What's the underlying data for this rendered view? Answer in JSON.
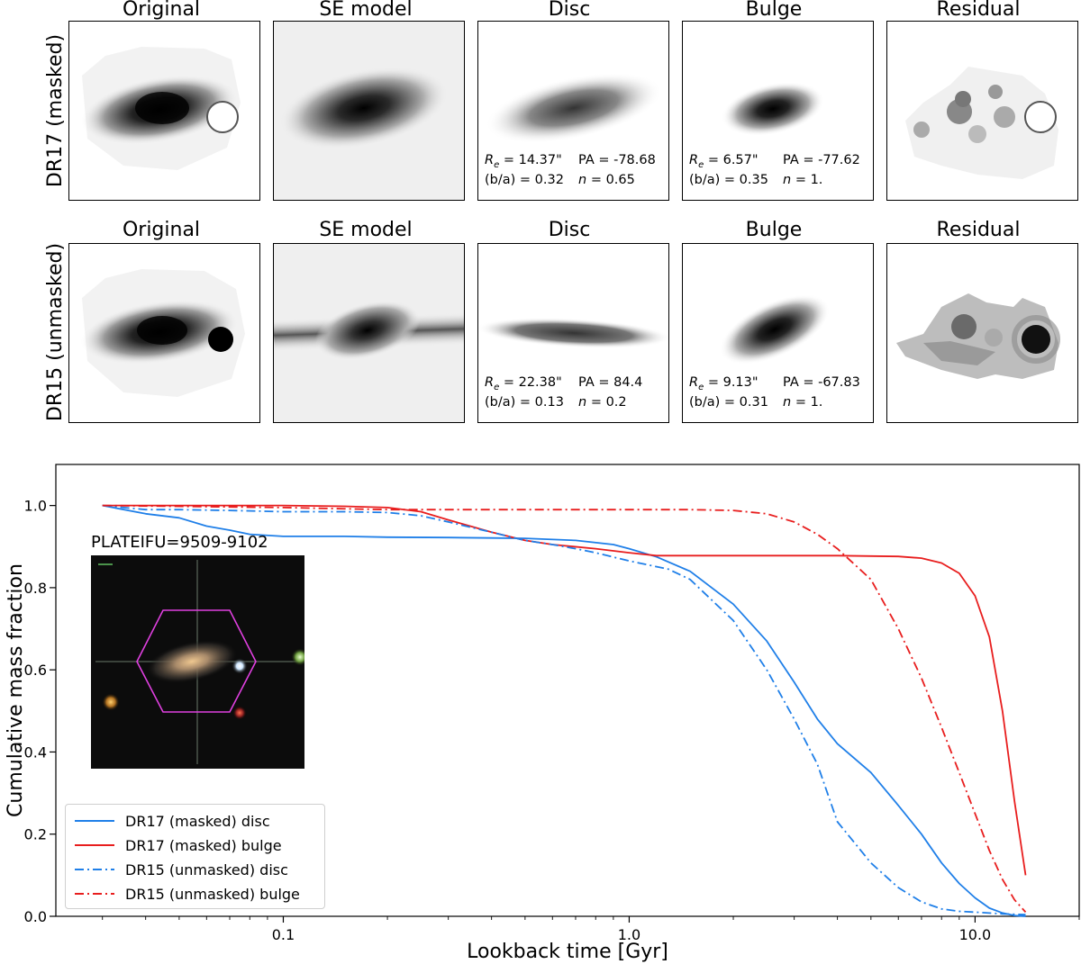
{
  "row_labels": [
    "DR17 (masked)",
    "DR15 (unmasked)"
  ],
  "panel_titles": [
    "Original",
    "SE model",
    "Disc",
    "Bulge",
    "Residual"
  ],
  "fits": {
    "dr17_disc": {
      "re": "= 14.37\"",
      "pa": "PA = -78.68",
      "ba": "(b/a) = 0.32",
      "n": "= 0.65"
    },
    "dr17_bulge": {
      "re": "= 6.57\"",
      "pa": "PA = -77.62",
      "ba": "(b/a) = 0.35",
      "n": "= 1."
    },
    "dr15_disc": {
      "re": "= 22.38\"",
      "pa": "PA = 84.4",
      "ba": "(b/a) = 0.13",
      "n": "= 0.2"
    },
    "dr15_bulge": {
      "re": "= 9.13\"",
      "pa": "PA = -67.83",
      "ba": "(b/a) = 0.31",
      "n": "= 1."
    }
  },
  "inset": {
    "title": "PLATEIFU=9509-9102",
    "hexagon_color": "#e040e0"
  },
  "chart_data": {
    "type": "line",
    "xlabel": "Lookback time [Gyr]",
    "ylabel": "Cumulative mass fraction",
    "xscale": "log",
    "xlim": [
      0.022,
      20
    ],
    "ylim": [
      0.0,
      1.1
    ],
    "x_ticks": [
      0.1,
      1.0,
      10.0
    ],
    "x_tick_labels": [
      "0.1",
      "1.0",
      "10.0"
    ],
    "y_ticks": [
      0.0,
      0.2,
      0.4,
      0.6,
      0.8,
      1.0
    ],
    "y_tick_labels": [
      "0.0",
      "0.2",
      "0.4",
      "0.6",
      "0.8",
      "1.0"
    ],
    "legend_position": "lower-left",
    "series": [
      {
        "name": "DR17 (masked) disc",
        "color": "#1f7fe8",
        "dash": "solid",
        "x": [
          0.03,
          0.04,
          0.05,
          0.06,
          0.07,
          0.08,
          0.1,
          0.15,
          0.2,
          0.3,
          0.4,
          0.5,
          0.7,
          0.9,
          1.0,
          1.2,
          1.5,
          2.0,
          2.5,
          3.0,
          3.5,
          4.0,
          5.0,
          6.0,
          7.0,
          8.0,
          9.0,
          10.0,
          11.0,
          12.0,
          13.0,
          14.0
        ],
        "y": [
          1.0,
          0.98,
          0.97,
          0.95,
          0.94,
          0.93,
          0.925,
          0.925,
          0.923,
          0.922,
          0.921,
          0.92,
          0.915,
          0.905,
          0.895,
          0.875,
          0.84,
          0.76,
          0.67,
          0.57,
          0.48,
          0.42,
          0.35,
          0.27,
          0.2,
          0.13,
          0.08,
          0.045,
          0.02,
          0.008,
          0.002,
          0.0
        ]
      },
      {
        "name": "DR17 (masked) bulge",
        "color": "#e81e1e",
        "dash": "solid",
        "x": [
          0.03,
          0.05,
          0.1,
          0.15,
          0.2,
          0.25,
          0.3,
          0.4,
          0.5,
          0.6,
          0.8,
          1.0,
          1.2,
          1.5,
          2.0,
          3.0,
          4.0,
          5.0,
          6.0,
          7.0,
          8.0,
          9.0,
          10.0,
          11.0,
          12.0,
          13.0,
          14.0
        ],
        "y": [
          1.0,
          1.0,
          1.0,
          0.998,
          0.995,
          0.985,
          0.965,
          0.935,
          0.915,
          0.905,
          0.895,
          0.885,
          0.878,
          0.878,
          0.878,
          0.878,
          0.878,
          0.877,
          0.876,
          0.872,
          0.86,
          0.835,
          0.78,
          0.68,
          0.5,
          0.28,
          0.1
        ]
      },
      {
        "name": "DR15 (unmasked) disc",
        "color": "#1f7fe8",
        "dash": "dashdot",
        "x": [
          0.03,
          0.04,
          0.05,
          0.07,
          0.1,
          0.15,
          0.2,
          0.25,
          0.3,
          0.4,
          0.5,
          0.6,
          0.7,
          0.8,
          1.0,
          1.3,
          1.5,
          2.0,
          2.5,
          3.0,
          3.5,
          4.0,
          5.0,
          6.0,
          7.0,
          8.0,
          9.0,
          10.0,
          12.0,
          14.0
        ],
        "y": [
          1.0,
          0.99,
          0.99,
          0.988,
          0.985,
          0.985,
          0.983,
          0.975,
          0.96,
          0.935,
          0.915,
          0.905,
          0.895,
          0.885,
          0.865,
          0.845,
          0.82,
          0.72,
          0.6,
          0.48,
          0.37,
          0.23,
          0.13,
          0.07,
          0.035,
          0.018,
          0.012,
          0.01,
          0.006,
          0.004
        ]
      },
      {
        "name": "DR15 (unmasked) bulge",
        "color": "#e81e1e",
        "dash": "dashdot",
        "x": [
          0.03,
          0.1,
          0.2,
          0.3,
          0.5,
          0.8,
          1.0,
          1.5,
          2.0,
          2.5,
          3.0,
          3.5,
          4.0,
          5.0,
          6.0,
          7.0,
          8.0,
          9.0,
          10.0,
          11.0,
          12.0,
          13.0,
          14.0
        ],
        "y": [
          1.0,
          0.995,
          0.99,
          0.99,
          0.99,
          0.99,
          0.99,
          0.99,
          0.988,
          0.98,
          0.96,
          0.93,
          0.895,
          0.82,
          0.7,
          0.58,
          0.46,
          0.35,
          0.25,
          0.16,
          0.09,
          0.04,
          0.01
        ]
      }
    ]
  }
}
